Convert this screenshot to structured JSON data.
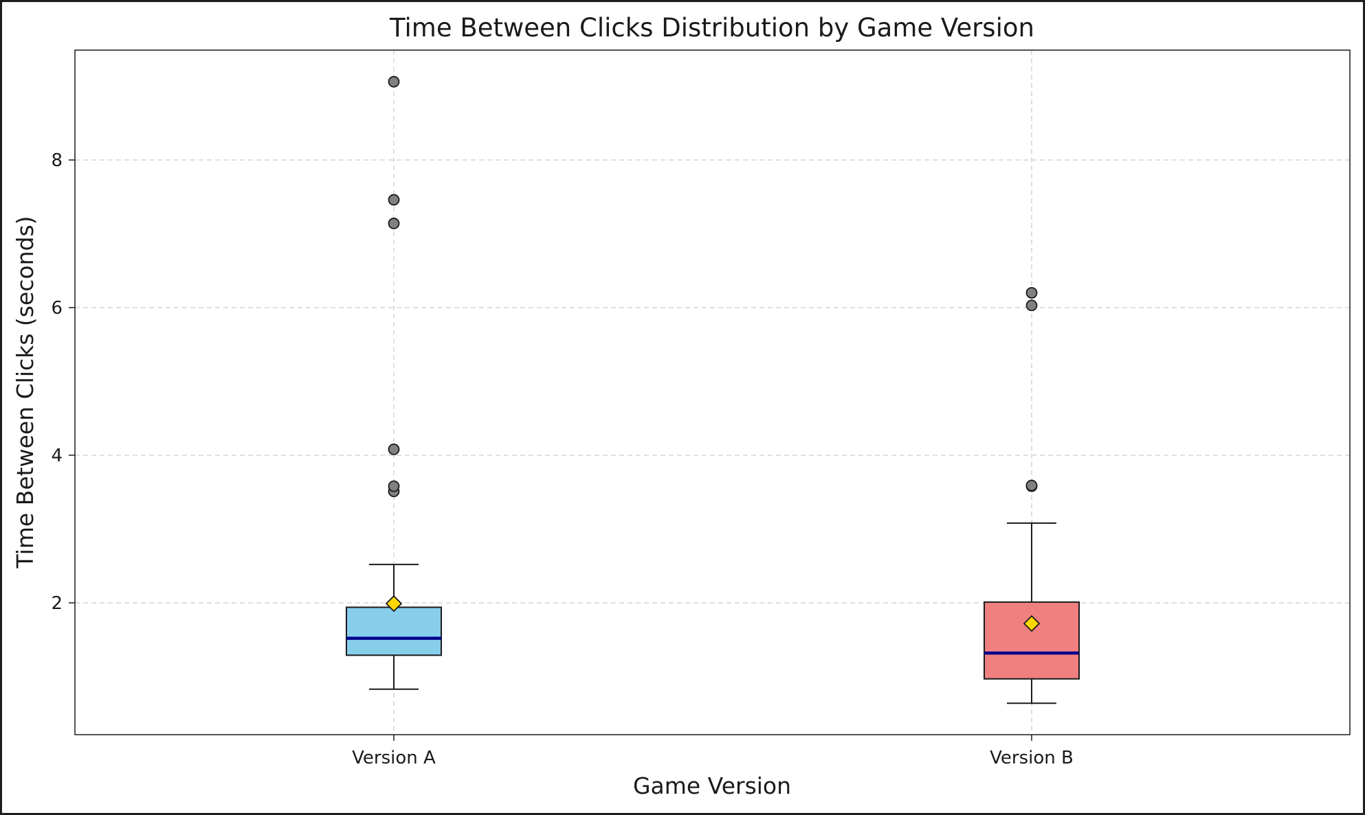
{
  "chart_data": {
    "type": "box",
    "title": "Time Between Clicks Distribution by Game Version",
    "xlabel": "Game Version",
    "ylabel": "Time Between Clicks (seconds)",
    "ylim": [
      0.2,
      9.5
    ],
    "yticks": [
      2,
      4,
      6,
      8
    ],
    "grid": true,
    "categories": [
      "Version A",
      "Version B"
    ],
    "series": [
      {
        "category": "Version A",
        "whisker_low": 0.83,
        "q1": 1.29,
        "median": 1.52,
        "q3": 1.94,
        "whisker_high": 2.52,
        "mean": 1.99,
        "outliers": [
          3.51,
          3.58,
          4.08,
          7.14,
          7.46,
          9.06
        ],
        "color": "#87ceeb"
      },
      {
        "category": "Version B",
        "whisker_low": 0.64,
        "q1": 0.97,
        "median": 1.32,
        "q3": 2.01,
        "whisker_high": 3.08,
        "mean": 1.72,
        "outliers": [
          3.58,
          3.59,
          6.03,
          6.2
        ],
        "color": "#f08080"
      }
    ],
    "median_color": "#00008b",
    "mean_color": "#ffd700",
    "outlier_color": "#808080"
  }
}
